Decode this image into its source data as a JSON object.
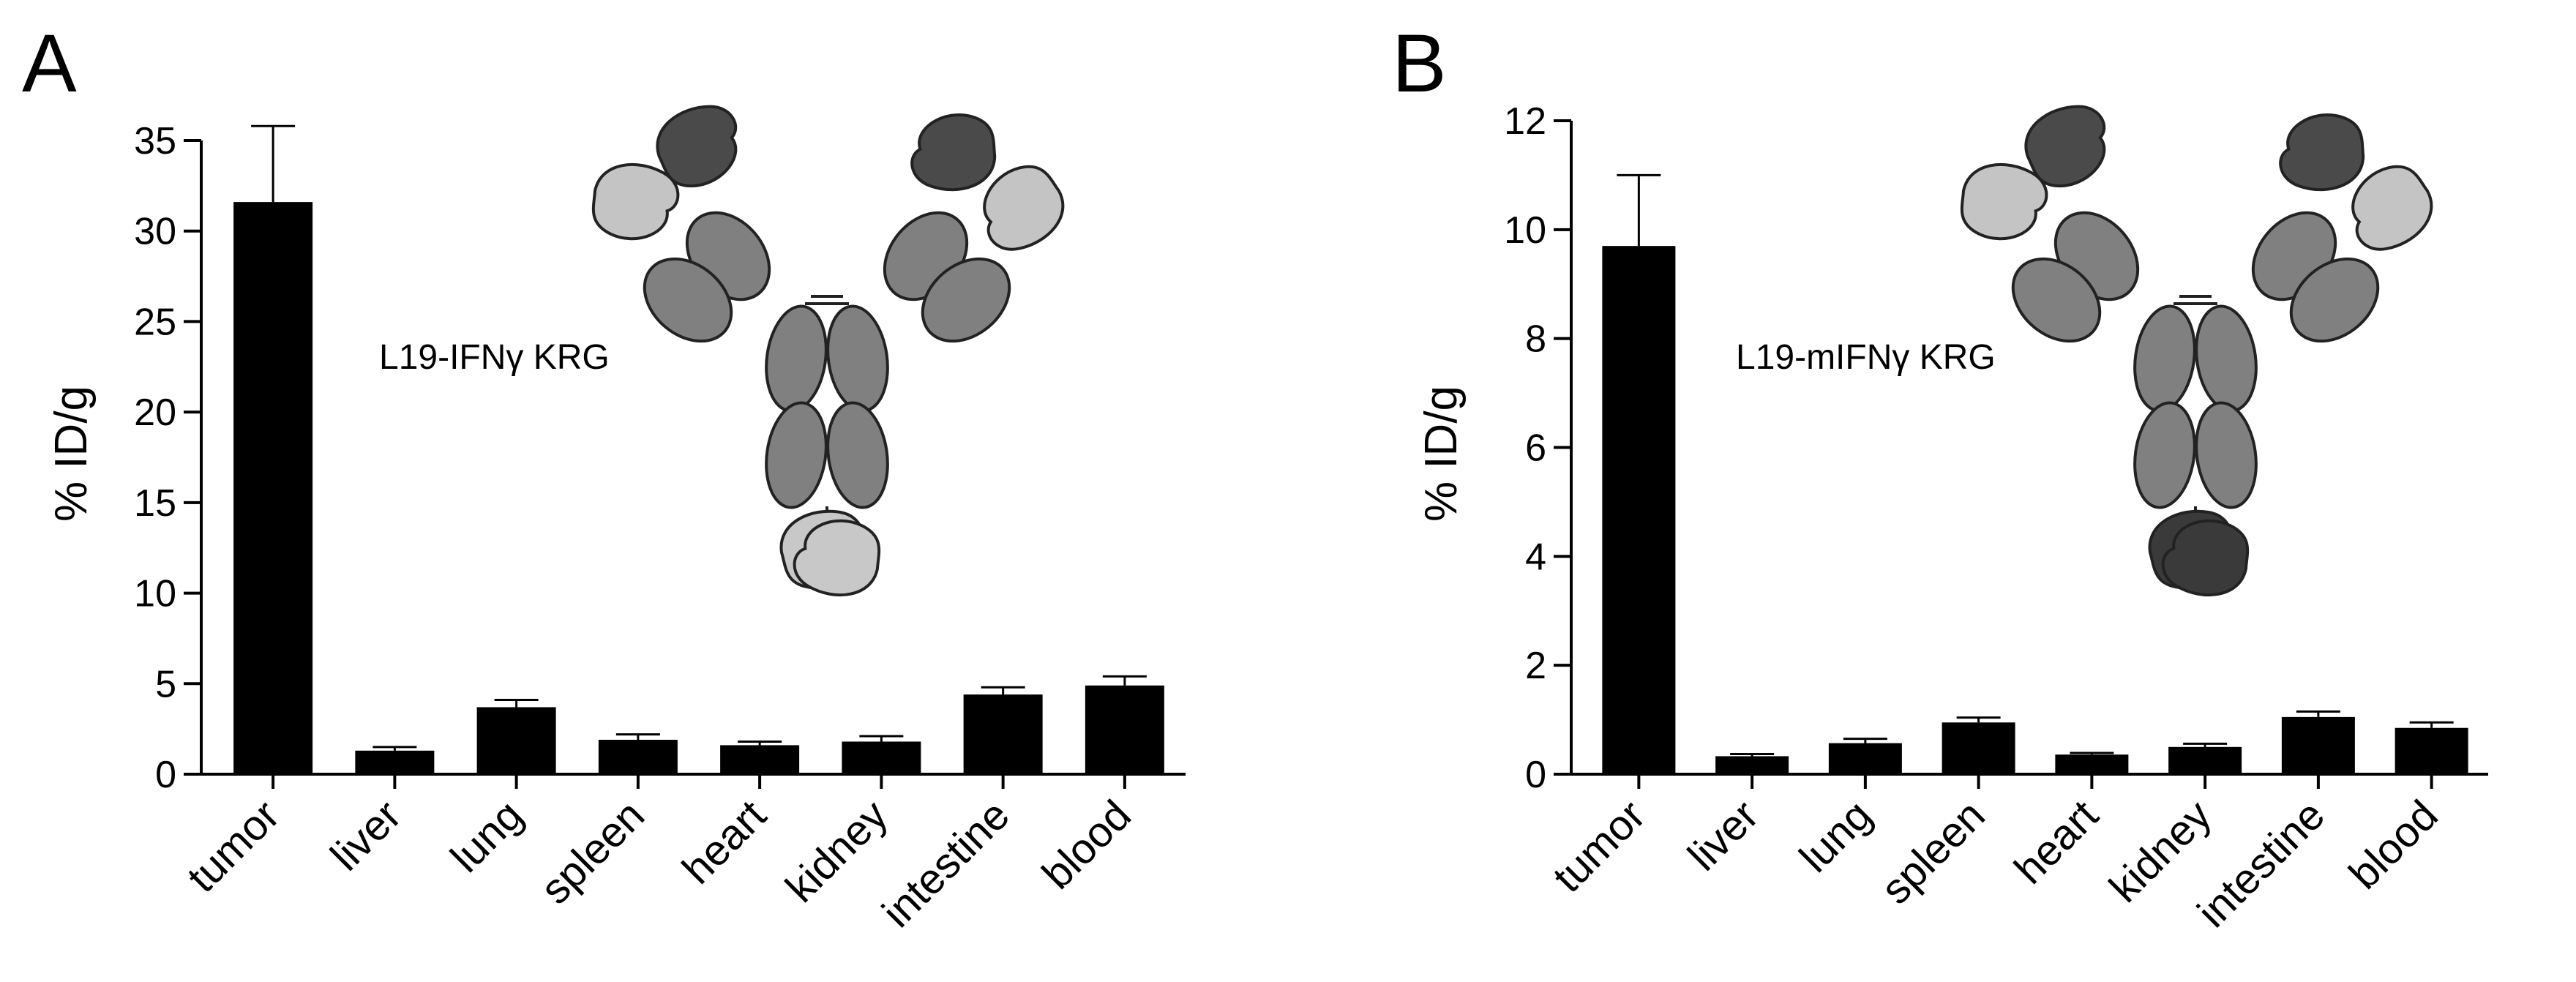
{
  "chart_data": [
    {
      "panel": "A",
      "type": "bar",
      "categories": [
        "tumor",
        "liver",
        "lung",
        "spleen",
        "heart",
        "kidney",
        "intestine",
        "blood"
      ],
      "values": [
        31.6,
        1.3,
        3.7,
        1.9,
        1.6,
        1.8,
        4.4,
        4.9
      ],
      "errors": [
        4.2,
        0.2,
        0.4,
        0.3,
        0.2,
        0.3,
        0.4,
        0.5
      ],
      "ylabel": "% ID/g",
      "ylim": [
        0,
        35
      ],
      "yticks": [
        0,
        5,
        10,
        15,
        20,
        25,
        30,
        35
      ],
      "annotation": "L19-IFNγ KRG",
      "bar_color": "#000000",
      "grid": false,
      "payload_color": "#c8c8c8"
    },
    {
      "panel": "B",
      "type": "bar",
      "categories": [
        "tumor",
        "liver",
        "lung",
        "spleen",
        "heart",
        "kidney",
        "intestine",
        "blood"
      ],
      "values": [
        9.7,
        0.33,
        0.57,
        0.95,
        0.36,
        0.5,
        1.05,
        0.85
      ],
      "errors": [
        1.3,
        0.04,
        0.08,
        0.09,
        0.03,
        0.06,
        0.1,
        0.1
      ],
      "ylabel": "% ID/g",
      "ylim": [
        0,
        12
      ],
      "yticks": [
        0,
        2,
        4,
        6,
        8,
        10,
        12
      ],
      "annotation": "L19-mIFNγ KRG",
      "bar_color": "#000000",
      "grid": false,
      "payload_color": "#3a3a3a"
    }
  ],
  "colors": {
    "antibody_dark": "#4a4a4a",
    "antibody_mid": "#808080",
    "antibody_light": "#c4c4c4",
    "outline": "#222222"
  }
}
